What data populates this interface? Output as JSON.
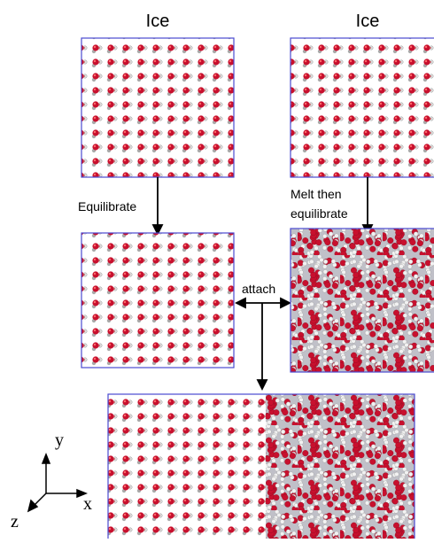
{
  "labels": {
    "ice_left": "Ice",
    "ice_right": "Ice",
    "equilibrate": "Equilibrate",
    "melt_line1": "Melt then",
    "melt_line2": "equilibrate",
    "attach": "attach"
  },
  "axes": {
    "x": "x",
    "y": "y",
    "z": "z"
  }
}
